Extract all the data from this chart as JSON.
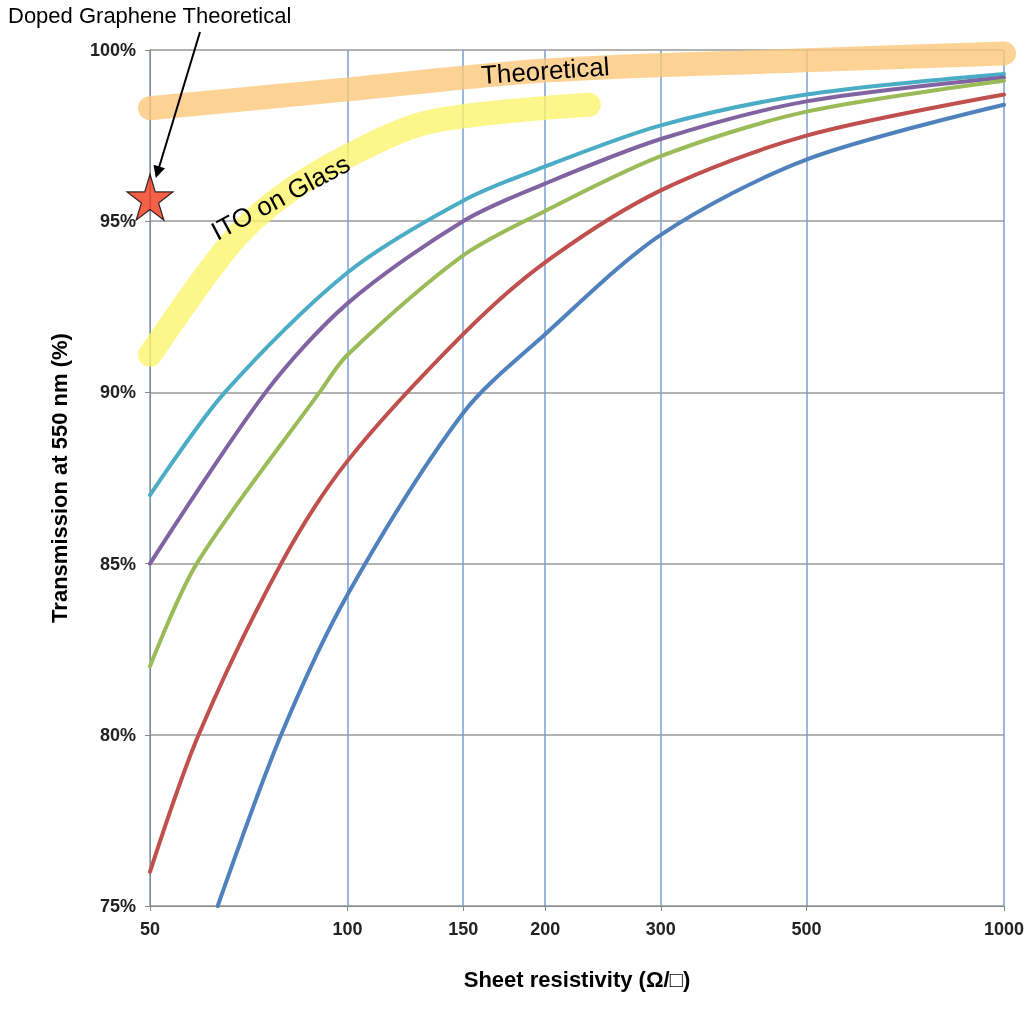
{
  "chart_data": {
    "type": "line",
    "xlabel": "Sheet resistivity (Ω/□)",
    "ylabel": "Transmission at 550 nm (%)",
    "log": "x",
    "xlim": [
      50,
      1000
    ],
    "xticks": [
      50,
      100,
      150,
      200,
      300,
      500,
      1000
    ],
    "ylim": [
      75,
      100
    ],
    "yticks": [
      {
        "value": 75,
        "label": "75%"
      },
      {
        "value": 80,
        "label": "80%"
      },
      {
        "value": 85,
        "label": "85%"
      },
      {
        "value": 90,
        "label": "90%"
      },
      {
        "value": 95,
        "label": "95%"
      },
      {
        "value": 100,
        "label": "100%"
      }
    ],
    "grid": true,
    "legend": false,
    "marker": "none",
    "line_style": "solid",
    "series": [
      {
        "name": "Theoretical",
        "color": "#fbc87a",
        "x": [
          50,
          100,
          200,
          500,
          1000
        ],
        "values": [
          98.3,
          98.85,
          99.4,
          99.7,
          99.9
        ]
      },
      {
        "name": "ITO on Glass",
        "color": "#fdf56e",
        "x": [
          50,
          66,
          79,
          100,
          133,
          233
        ],
        "values": [
          91.1,
          94.3,
          95.7,
          96.9,
          97.9,
          98.4
        ]
      },
      {
        "color": "#4bacc6",
        "x": [
          50,
          65,
          100,
          150,
          200,
          300,
          500,
          1000
        ],
        "values": [
          87,
          90.0,
          93.5,
          95.6,
          96.6,
          97.8,
          98.7,
          99.3
        ]
      },
      {
        "color": "#8064a2",
        "x": [
          50,
          75,
          100,
          150,
          200,
          300,
          500,
          1000
        ],
        "values": [
          85,
          90.0,
          92.6,
          95.0,
          96.1,
          97.4,
          98.5,
          99.2
        ]
      },
      {
        "color": "#9bbb59",
        "x": [
          50,
          58.9,
          90.6,
          100,
          150,
          200,
          300,
          500,
          1000
        ],
        "values": [
          82,
          85,
          90.0,
          91.1,
          94.0,
          95.3,
          96.9,
          98.2,
          99.1
        ]
      },
      {
        "color": "#c0504d",
        "x": [
          50,
          59.3,
          79.2,
          100,
          150,
          200,
          300,
          500,
          1000
        ],
        "values": [
          76,
          80,
          85,
          88.0,
          91.7,
          93.8,
          95.9,
          97.5,
          98.7
        ]
      },
      {
        "color": "#4f81bd",
        "x": [
          63.4,
          79.2,
          100,
          150,
          200,
          300,
          500,
          1000
        ],
        "values": [
          75,
          80,
          84.1,
          89.4,
          91.7,
          94.6,
          96.8,
          98.4
        ]
      },
      {
        "type": "scatter",
        "marker": "star",
        "color": "#f23a1a",
        "x": [
          50
        ],
        "values": [
          95.7
        ]
      }
    ],
    "annotations": [
      "Doped Graphene Theoretical"
    ]
  }
}
